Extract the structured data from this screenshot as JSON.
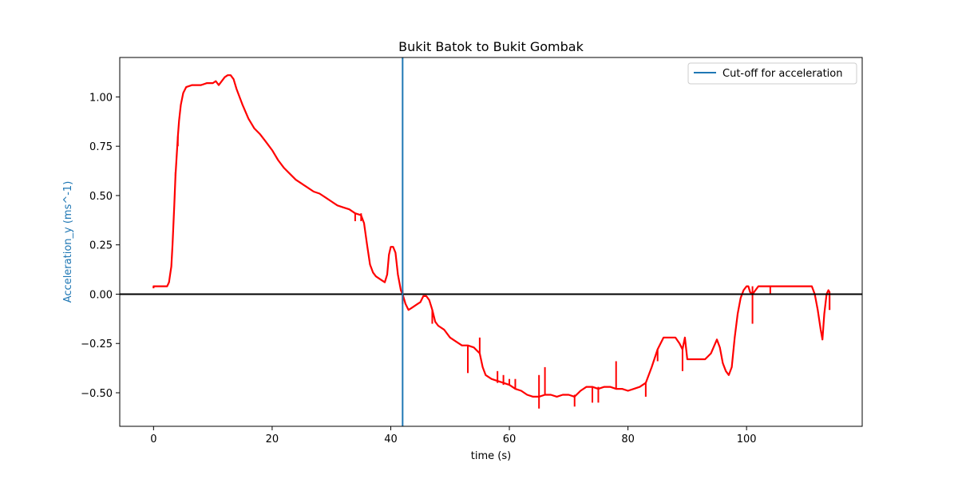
{
  "chart_data": {
    "type": "line",
    "title": "Bukit Batok to Bukit Gombak",
    "xlabel": "time (s)",
    "ylabel": "Acceleration_y (ms^-1)",
    "xlim": [
      -5.7,
      119.5
    ],
    "ylim": [
      -0.67,
      1.2
    ],
    "x_ticks": [
      0,
      20,
      40,
      60,
      80,
      100
    ],
    "y_ticks": [
      -0.5,
      -0.25,
      0.0,
      0.25,
      0.5,
      0.75,
      1.0
    ],
    "y_tick_labels": [
      "−0.50",
      "−0.25",
      "0.00",
      "0.25",
      "0.50",
      "0.75",
      "1.00"
    ],
    "grid": false,
    "legend_position": "upper right",
    "cutoff_x": 42,
    "zero_line_y": 0,
    "series": [
      {
        "color": "#ff0000",
        "points": [
          [
            0,
            0.03
          ],
          [
            0,
            0.04
          ],
          [
            1,
            0.04
          ],
          [
            2,
            0.04
          ],
          [
            2.3,
            0.04
          ],
          [
            2.6,
            0.06
          ],
          [
            2.8,
            0.1
          ],
          [
            3.0,
            0.14
          ],
          [
            3.2,
            0.25
          ],
          [
            3.5,
            0.45
          ],
          [
            3.7,
            0.6
          ],
          [
            3.9,
            0.7
          ],
          [
            4.1,
            0.8
          ],
          [
            4.3,
            0.88
          ],
          [
            4.6,
            0.96
          ],
          [
            5.0,
            1.02
          ],
          [
            5.5,
            1.05
          ],
          [
            6.5,
            1.06
          ],
          [
            8,
            1.06
          ],
          [
            9,
            1.07
          ],
          [
            10,
            1.07
          ],
          [
            10.5,
            1.08
          ],
          [
            11,
            1.06
          ],
          [
            11.5,
            1.08
          ],
          [
            12,
            1.1
          ],
          [
            12.5,
            1.11
          ],
          [
            13,
            1.11
          ],
          [
            13.5,
            1.09
          ],
          [
            14,
            1.04
          ],
          [
            15,
            0.96
          ],
          [
            16,
            0.89
          ],
          [
            17,
            0.84
          ],
          [
            18,
            0.81
          ],
          [
            19,
            0.77
          ],
          [
            20,
            0.73
          ],
          [
            21,
            0.68
          ],
          [
            22,
            0.64
          ],
          [
            23,
            0.61
          ],
          [
            24,
            0.58
          ],
          [
            25,
            0.56
          ],
          [
            26,
            0.54
          ],
          [
            27,
            0.52
          ],
          [
            28,
            0.51
          ],
          [
            29,
            0.49
          ],
          [
            30,
            0.47
          ],
          [
            31,
            0.45
          ],
          [
            32,
            0.44
          ],
          [
            33,
            0.43
          ],
          [
            34,
            0.41
          ],
          [
            35,
            0.4
          ],
          [
            35.5,
            0.36
          ],
          [
            36,
            0.25
          ],
          [
            36.5,
            0.15
          ],
          [
            37,
            0.11
          ],
          [
            37.5,
            0.09
          ],
          [
            38,
            0.08
          ],
          [
            38.5,
            0.07
          ],
          [
            39,
            0.06
          ],
          [
            39.4,
            0.1
          ],
          [
            39.7,
            0.2
          ],
          [
            40,
            0.24
          ],
          [
            40.4,
            0.24
          ],
          [
            40.8,
            0.21
          ],
          [
            41.2,
            0.1
          ],
          [
            41.7,
            0.02
          ],
          [
            42,
            0.0
          ],
          [
            42.5,
            -0.05
          ],
          [
            43,
            -0.08
          ],
          [
            43.5,
            -0.07
          ],
          [
            44,
            -0.06
          ],
          [
            44.5,
            -0.05
          ],
          [
            45,
            -0.04
          ],
          [
            45.5,
            -0.01
          ],
          [
            46,
            -0.01
          ],
          [
            46.5,
            -0.03
          ],
          [
            47,
            -0.08
          ],
          [
            47.5,
            -0.14
          ],
          [
            48,
            -0.16
          ],
          [
            49,
            -0.18
          ],
          [
            50,
            -0.22
          ],
          [
            51,
            -0.24
          ],
          [
            52,
            -0.26
          ],
          [
            53,
            -0.26
          ],
          [
            54,
            -0.27
          ],
          [
            55,
            -0.3
          ],
          [
            55.5,
            -0.37
          ],
          [
            56,
            -0.41
          ],
          [
            57,
            -0.43
          ],
          [
            58,
            -0.44
          ],
          [
            59,
            -0.45
          ],
          [
            60,
            -0.46
          ],
          [
            61,
            -0.48
          ],
          [
            62,
            -0.49
          ],
          [
            63,
            -0.51
          ],
          [
            64,
            -0.52
          ],
          [
            65,
            -0.52
          ],
          [
            66,
            -0.51
          ],
          [
            67,
            -0.51
          ],
          [
            68,
            -0.52
          ],
          [
            69,
            -0.51
          ],
          [
            70,
            -0.51
          ],
          [
            71,
            -0.52
          ],
          [
            72,
            -0.49
          ],
          [
            73,
            -0.47
          ],
          [
            74,
            -0.47
          ],
          [
            75,
            -0.48
          ],
          [
            76,
            -0.47
          ],
          [
            77,
            -0.47
          ],
          [
            78,
            -0.48
          ],
          [
            79,
            -0.48
          ],
          [
            80,
            -0.49
          ],
          [
            81,
            -0.48
          ],
          [
            82,
            -0.47
          ],
          [
            83,
            -0.45
          ],
          [
            84,
            -0.37
          ],
          [
            85,
            -0.28
          ],
          [
            86,
            -0.22
          ],
          [
            87,
            -0.22
          ],
          [
            88,
            -0.22
          ],
          [
            88.7,
            -0.25
          ],
          [
            89.2,
            -0.28
          ],
          [
            89.6,
            -0.22
          ],
          [
            90,
            -0.33
          ],
          [
            91,
            -0.33
          ],
          [
            92,
            -0.33
          ],
          [
            93,
            -0.33
          ],
          [
            94,
            -0.3
          ],
          [
            95,
            -0.23
          ],
          [
            95.5,
            -0.27
          ],
          [
            96,
            -0.35
          ],
          [
            96.5,
            -0.39
          ],
          [
            97,
            -0.41
          ],
          [
            97.5,
            -0.37
          ],
          [
            98,
            -0.22
          ],
          [
            98.5,
            -0.1
          ],
          [
            99,
            -0.02
          ],
          [
            99.5,
            0.02
          ],
          [
            100,
            0.04
          ],
          [
            100.3,
            0.04
          ],
          [
            100.6,
            0.01
          ],
          [
            101,
            0.0
          ],
          [
            101.5,
            0.02
          ],
          [
            102,
            0.04
          ],
          [
            104,
            0.04
          ],
          [
            106,
            0.04
          ],
          [
            108,
            0.04
          ],
          [
            110,
            0.04
          ],
          [
            111,
            0.04
          ],
          [
            111.5,
            0.0
          ],
          [
            112,
            -0.08
          ],
          [
            112.5,
            -0.18
          ],
          [
            112.8,
            -0.23
          ],
          [
            113.1,
            -0.1
          ],
          [
            113.5,
            0.0
          ],
          [
            113.8,
            0.02
          ],
          [
            114,
            0.01
          ],
          [
            114,
            -0.08
          ]
        ]
      },
      {
        "color": "#ff0000",
        "points": [
          [
            3.7,
            0.6
          ],
          [
            3.7,
            0.62
          ],
          [
            4.1,
            0.75
          ],
          [
            4.1,
            0.8
          ],
          [
            34,
            0.41
          ],
          [
            34,
            0.37
          ],
          [
            35,
            0.41
          ],
          [
            35,
            0.37
          ],
          [
            42,
            0.02
          ],
          [
            42,
            -0.05
          ],
          [
            47,
            -0.08
          ],
          [
            47,
            -0.15
          ],
          [
            53,
            -0.26
          ],
          [
            53,
            -0.4
          ],
          [
            55,
            -0.22
          ],
          [
            55,
            -0.3
          ],
          [
            58,
            -0.39
          ],
          [
            58,
            -0.45
          ],
          [
            59,
            -0.41
          ],
          [
            59,
            -0.46
          ],
          [
            60,
            -0.43
          ],
          [
            60,
            -0.46
          ],
          [
            61,
            -0.43
          ],
          [
            61,
            -0.48
          ],
          [
            65,
            -0.41
          ],
          [
            65,
            -0.58
          ],
          [
            66,
            -0.37
          ],
          [
            66,
            -0.51
          ],
          [
            71,
            -0.51
          ],
          [
            71,
            -0.57
          ],
          [
            74,
            -0.47
          ],
          [
            74,
            -0.55
          ],
          [
            75,
            -0.47
          ],
          [
            75,
            -0.55
          ],
          [
            78,
            -0.34
          ],
          [
            78,
            -0.48
          ],
          [
            83,
            -0.45
          ],
          [
            83,
            -0.52
          ],
          [
            85,
            -0.28
          ],
          [
            85,
            -0.34
          ],
          [
            89.2,
            -0.28
          ],
          [
            89.2,
            -0.39
          ],
          [
            101,
            0.04
          ],
          [
            101,
            -0.15
          ],
          [
            104,
            0.04
          ],
          [
            104,
            0.0
          ]
        ]
      }
    ],
    "legend": [
      {
        "label": "Cut-off for acceleration",
        "color": "#1f77b4"
      }
    ]
  },
  "colors": {
    "series_line": "#ff0000",
    "cutoff_line": "#1f77b4",
    "zero_line": "#000000",
    "ylabel": "#1f77b4"
  }
}
